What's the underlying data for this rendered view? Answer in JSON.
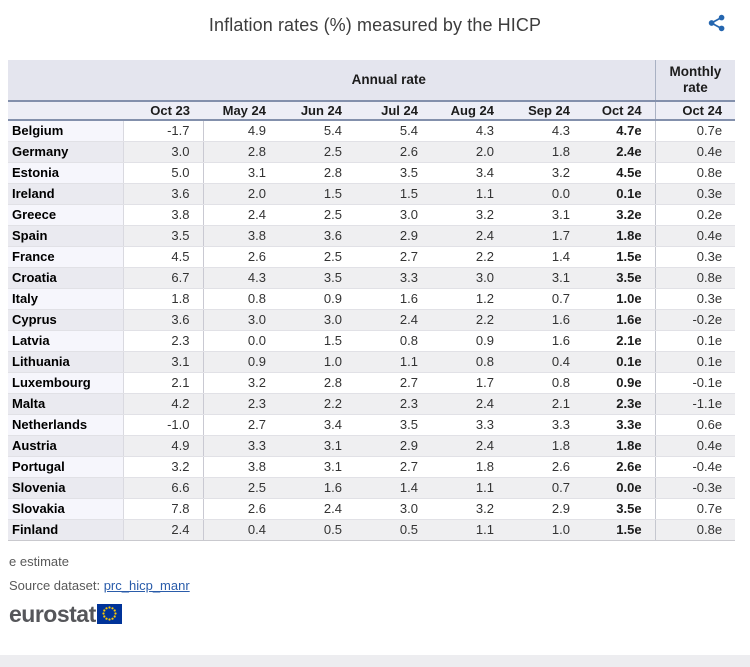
{
  "title": "Inflation rates (%) measured by the HICP",
  "footnote": "e estimate",
  "source": {
    "label": "Source dataset:",
    "link_text": "prc_hicp_manr"
  },
  "logo_text": "eurostat",
  "colors": {
    "share_icon_blue": "#2566af",
    "header_background": "#e4e5ee",
    "subheader_background": "#edeef6",
    "header_border_blue_gray": "#8390ac",
    "row_stripe_gray": "#efeff1",
    "link_blue": "#2a5caa",
    "logo_gray": "#55565a",
    "eu_flag_blue": "#003399",
    "eu_star_yellow": "#ffcc00"
  },
  "table": {
    "annual_group_label": "Annual rate",
    "monthly_group_label": "Monthly rate",
    "annual_columns": [
      "Oct 23",
      "May 24",
      "Jun 24",
      "Jul 24",
      "Aug 24",
      "Sep 24",
      "Oct 24"
    ],
    "monthly_column_label": "Oct 24",
    "rows": [
      {
        "country": "Belgium",
        "values": [
          "-1.7",
          "4.9",
          "5.4",
          "5.4",
          "4.3",
          "4.3",
          "4.7e"
        ],
        "monthly": "0.7e"
      },
      {
        "country": "Germany",
        "values": [
          "3.0",
          "2.8",
          "2.5",
          "2.6",
          "2.0",
          "1.8",
          "2.4e"
        ],
        "monthly": "0.4e"
      },
      {
        "country": "Estonia",
        "values": [
          "5.0",
          "3.1",
          "2.8",
          "3.5",
          "3.4",
          "3.2",
          "4.5e"
        ],
        "monthly": "0.8e"
      },
      {
        "country": "Ireland",
        "values": [
          "3.6",
          "2.0",
          "1.5",
          "1.5",
          "1.1",
          "0.0",
          "0.1e"
        ],
        "monthly": "0.3e"
      },
      {
        "country": "Greece",
        "values": [
          "3.8",
          "2.4",
          "2.5",
          "3.0",
          "3.2",
          "3.1",
          "3.2e"
        ],
        "monthly": "0.2e"
      },
      {
        "country": "Spain",
        "values": [
          "3.5",
          "3.8",
          "3.6",
          "2.9",
          "2.4",
          "1.7",
          "1.8e"
        ],
        "monthly": "0.4e"
      },
      {
        "country": "France",
        "values": [
          "4.5",
          "2.6",
          "2.5",
          "2.7",
          "2.2",
          "1.4",
          "1.5e"
        ],
        "monthly": "0.3e"
      },
      {
        "country": "Croatia",
        "values": [
          "6.7",
          "4.3",
          "3.5",
          "3.3",
          "3.0",
          "3.1",
          "3.5e"
        ],
        "monthly": "0.8e"
      },
      {
        "country": "Italy",
        "values": [
          "1.8",
          "0.8",
          "0.9",
          "1.6",
          "1.2",
          "0.7",
          "1.0e"
        ],
        "monthly": "0.3e"
      },
      {
        "country": "Cyprus",
        "values": [
          "3.6",
          "3.0",
          "3.0",
          "2.4",
          "2.2",
          "1.6",
          "1.6e"
        ],
        "monthly": "-0.2e"
      },
      {
        "country": "Latvia",
        "values": [
          "2.3",
          "0.0",
          "1.5",
          "0.8",
          "0.9",
          "1.6",
          "2.1e"
        ],
        "monthly": "0.1e"
      },
      {
        "country": "Lithuania",
        "values": [
          "3.1",
          "0.9",
          "1.0",
          "1.1",
          "0.8",
          "0.4",
          "0.1e"
        ],
        "monthly": "0.1e"
      },
      {
        "country": "Luxembourg",
        "values": [
          "2.1",
          "3.2",
          "2.8",
          "2.7",
          "1.7",
          "0.8",
          "0.9e"
        ],
        "monthly": "-0.1e"
      },
      {
        "country": "Malta",
        "values": [
          "4.2",
          "2.3",
          "2.2",
          "2.3",
          "2.4",
          "2.1",
          "2.3e"
        ],
        "monthly": "-1.1e"
      },
      {
        "country": "Netherlands",
        "values": [
          "-1.0",
          "2.7",
          "3.4",
          "3.5",
          "3.3",
          "3.3",
          "3.3e"
        ],
        "monthly": "0.6e"
      },
      {
        "country": "Austria",
        "values": [
          "4.9",
          "3.3",
          "3.1",
          "2.9",
          "2.4",
          "1.8",
          "1.8e"
        ],
        "monthly": "0.4e"
      },
      {
        "country": "Portugal",
        "values": [
          "3.2",
          "3.8",
          "3.1",
          "2.7",
          "1.8",
          "2.6",
          "2.6e"
        ],
        "monthly": "-0.4e"
      },
      {
        "country": "Slovenia",
        "values": [
          "6.6",
          "2.5",
          "1.6",
          "1.4",
          "1.1",
          "0.7",
          "0.0e"
        ],
        "monthly": "-0.3e"
      },
      {
        "country": "Slovakia",
        "values": [
          "7.8",
          "2.6",
          "2.4",
          "3.0",
          "3.2",
          "2.9",
          "3.5e"
        ],
        "monthly": "0.7e"
      },
      {
        "country": "Finland",
        "values": [
          "2.4",
          "0.4",
          "0.5",
          "0.5",
          "1.1",
          "1.0",
          "1.5e"
        ],
        "monthly": "0.8e"
      }
    ]
  },
  "chart_data": {
    "type": "table",
    "title": "Inflation rates (%) measured by the HICP",
    "column_groups": [
      "Annual rate",
      "Monthly rate"
    ],
    "columns": [
      "Oct 23",
      "May 24",
      "Jun 24",
      "Jul 24",
      "Aug 24",
      "Sep 24",
      "Oct 24",
      "Oct 24 (monthly)"
    ],
    "note": "Oct 24 annual and monthly values are estimates (e)",
    "rows": [
      {
        "country": "Belgium",
        "annual": [
          -1.7,
          4.9,
          5.4,
          5.4,
          4.3,
          4.3,
          4.7
        ],
        "monthly": 0.7
      },
      {
        "country": "Germany",
        "annual": [
          3.0,
          2.8,
          2.5,
          2.6,
          2.0,
          1.8,
          2.4
        ],
        "monthly": 0.4
      },
      {
        "country": "Estonia",
        "annual": [
          5.0,
          3.1,
          2.8,
          3.5,
          3.4,
          3.2,
          4.5
        ],
        "monthly": 0.8
      },
      {
        "country": "Ireland",
        "annual": [
          3.6,
          2.0,
          1.5,
          1.5,
          1.1,
          0.0,
          0.1
        ],
        "monthly": 0.3
      },
      {
        "country": "Greece",
        "annual": [
          3.8,
          2.4,
          2.5,
          3.0,
          3.2,
          3.1,
          3.2
        ],
        "monthly": 0.2
      },
      {
        "country": "Spain",
        "annual": [
          3.5,
          3.8,
          3.6,
          2.9,
          2.4,
          1.7,
          1.8
        ],
        "monthly": 0.4
      },
      {
        "country": "France",
        "annual": [
          4.5,
          2.6,
          2.5,
          2.7,
          2.2,
          1.4,
          1.5
        ],
        "monthly": 0.3
      },
      {
        "country": "Croatia",
        "annual": [
          6.7,
          4.3,
          3.5,
          3.3,
          3.0,
          3.1,
          3.5
        ],
        "monthly": 0.8
      },
      {
        "country": "Italy",
        "annual": [
          1.8,
          0.8,
          0.9,
          1.6,
          1.2,
          0.7,
          1.0
        ],
        "monthly": 0.3
      },
      {
        "country": "Cyprus",
        "annual": [
          3.6,
          3.0,
          3.0,
          2.4,
          2.2,
          1.6,
          1.6
        ],
        "monthly": -0.2
      },
      {
        "country": "Latvia",
        "annual": [
          2.3,
          0.0,
          1.5,
          0.8,
          0.9,
          1.6,
          2.1
        ],
        "monthly": 0.1
      },
      {
        "country": "Lithuania",
        "annual": [
          3.1,
          0.9,
          1.0,
          1.1,
          0.8,
          0.4,
          0.1
        ],
        "monthly": 0.1
      },
      {
        "country": "Luxembourg",
        "annual": [
          2.1,
          3.2,
          2.8,
          2.7,
          1.7,
          0.8,
          0.9
        ],
        "monthly": -0.1
      },
      {
        "country": "Malta",
        "annual": [
          4.2,
          2.3,
          2.2,
          2.3,
          2.4,
          2.1,
          2.3
        ],
        "monthly": -1.1
      },
      {
        "country": "Netherlands",
        "annual": [
          -1.0,
          2.7,
          3.4,
          3.5,
          3.3,
          3.3,
          3.3
        ],
        "monthly": 0.6
      },
      {
        "country": "Austria",
        "annual": [
          4.9,
          3.3,
          3.1,
          2.9,
          2.4,
          1.8,
          1.8
        ],
        "monthly": 0.4
      },
      {
        "country": "Portugal",
        "annual": [
          3.2,
          3.8,
          3.1,
          2.7,
          1.8,
          2.6,
          2.6
        ],
        "monthly": -0.4
      },
      {
        "country": "Slovenia",
        "annual": [
          6.6,
          2.5,
          1.6,
          1.4,
          1.1,
          0.7,
          0.0
        ],
        "monthly": -0.3
      },
      {
        "country": "Slovakia",
        "annual": [
          7.8,
          2.6,
          2.4,
          3.0,
          3.2,
          2.9,
          3.5
        ],
        "monthly": 0.7
      },
      {
        "country": "Finland",
        "annual": [
          2.4,
          0.4,
          0.5,
          0.5,
          1.1,
          1.0,
          1.5
        ],
        "monthly": 0.8
      }
    ]
  }
}
